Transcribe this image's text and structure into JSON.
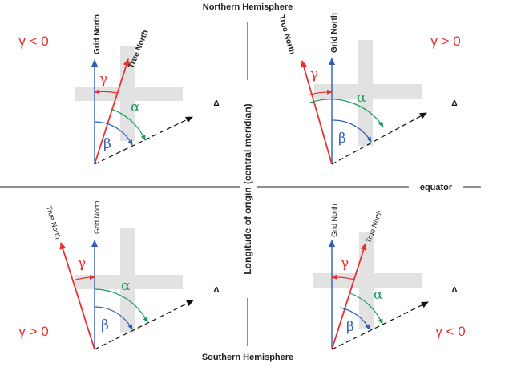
{
  "labels": {
    "northern_hemisphere": "Northern Hemisphere",
    "southern_hemisphere": "Southern Hemisphere",
    "central_meridian": "Longitude of origin (central meridian)",
    "equator": "equator",
    "grid_north": "Grid North",
    "true_north": "True North",
    "alpha": "α",
    "beta": "β",
    "gamma": "γ",
    "target_symbol": "Δ"
  },
  "quadrants": {
    "top_left": {
      "gamma_sign": "γ < 0"
    },
    "top_right": {
      "gamma_sign": "γ > 0"
    },
    "bottom_left": {
      "gamma_sign": "γ > 0"
    },
    "bottom_right": {
      "gamma_sign": "γ < 0"
    }
  },
  "colors": {
    "grid_north": "#2f5fb3",
    "true_north": "#e8312f",
    "alpha": "#1a9b5a",
    "gamma_text": "#e8312f",
    "gray_cross": "#e2e2e2",
    "axis": "#222222"
  }
}
